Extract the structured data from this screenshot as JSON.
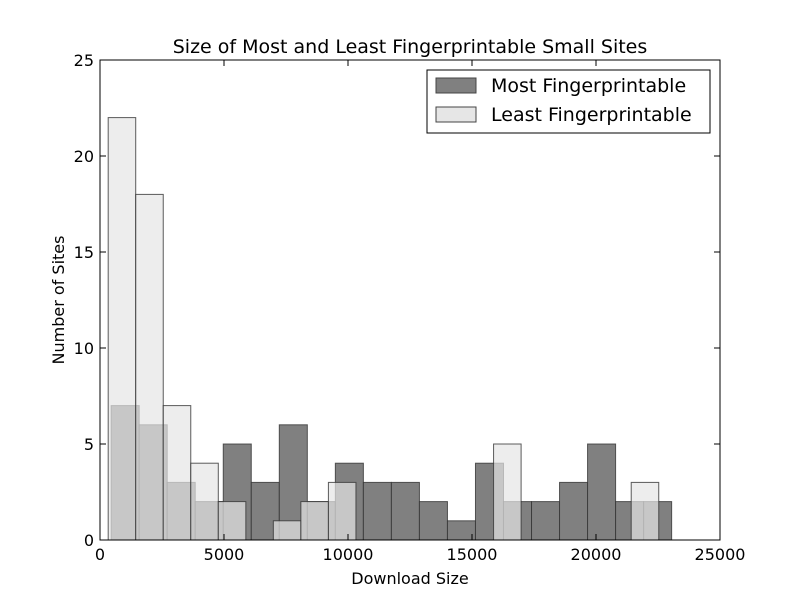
{
  "chart_data": {
    "type": "bar",
    "subtype": "overlapping-histogram",
    "title": "Size of Most and Least Fingerprintable Small Sites",
    "xlabel": "Download Size",
    "ylabel": "Number of Sites",
    "xlim": [
      0,
      25000
    ],
    "ylim": [
      0,
      25
    ],
    "xticks": [
      0,
      5000,
      10000,
      15000,
      20000,
      25000
    ],
    "yticks": [
      0,
      5,
      10,
      15,
      20,
      25
    ],
    "grid": false,
    "legend_position": "top-right",
    "series": [
      {
        "name": "Most Fingerprintable",
        "color": "#808080",
        "bin_width": 1130,
        "bins": [
          {
            "x0": 450,
            "count": 7
          },
          {
            "x0": 1580,
            "count": 6
          },
          {
            "x0": 2710,
            "count": 3
          },
          {
            "x0": 3840,
            "count": 2
          },
          {
            "x0": 4970,
            "count": 5
          },
          {
            "x0": 6100,
            "count": 3
          },
          {
            "x0": 7230,
            "count": 6
          },
          {
            "x0": 8360,
            "count": 2
          },
          {
            "x0": 9490,
            "count": 4
          },
          {
            "x0": 10620,
            "count": 3
          },
          {
            "x0": 11750,
            "count": 3
          },
          {
            "x0": 12880,
            "count": 2
          },
          {
            "x0": 14010,
            "count": 1
          },
          {
            "x0": 15140,
            "count": 4
          },
          {
            "x0": 16270,
            "count": 2
          },
          {
            "x0": 17400,
            "count": 2
          },
          {
            "x0": 18530,
            "count": 3
          },
          {
            "x0": 19660,
            "count": 5
          },
          {
            "x0": 20790,
            "count": 2
          },
          {
            "x0": 21920,
            "count": 2
          }
        ]
      },
      {
        "name": "Least Fingerprintable",
        "color": "#e6e6e6",
        "bin_width": 1110,
        "bins": [
          {
            "x0": 330,
            "count": 22
          },
          {
            "x0": 1440,
            "count": 18
          },
          {
            "x0": 2550,
            "count": 7
          },
          {
            "x0": 3660,
            "count": 4
          },
          {
            "x0": 4770,
            "count": 2
          },
          {
            "x0": 5880,
            "count": 0
          },
          {
            "x0": 6990,
            "count": 1
          },
          {
            "x0": 8100,
            "count": 2
          },
          {
            "x0": 9210,
            "count": 3
          },
          {
            "x0": 10320,
            "count": 0
          },
          {
            "x0": 11430,
            "count": 0
          },
          {
            "x0": 12540,
            "count": 0
          },
          {
            "x0": 13650,
            "count": 0
          },
          {
            "x0": 14760,
            "count": 0
          },
          {
            "x0": 15870,
            "count": 5
          },
          {
            "x0": 16980,
            "count": 0
          },
          {
            "x0": 18090,
            "count": 0
          },
          {
            "x0": 19200,
            "count": 0
          },
          {
            "x0": 20310,
            "count": 0
          },
          {
            "x0": 21420,
            "count": 3
          }
        ]
      }
    ]
  }
}
